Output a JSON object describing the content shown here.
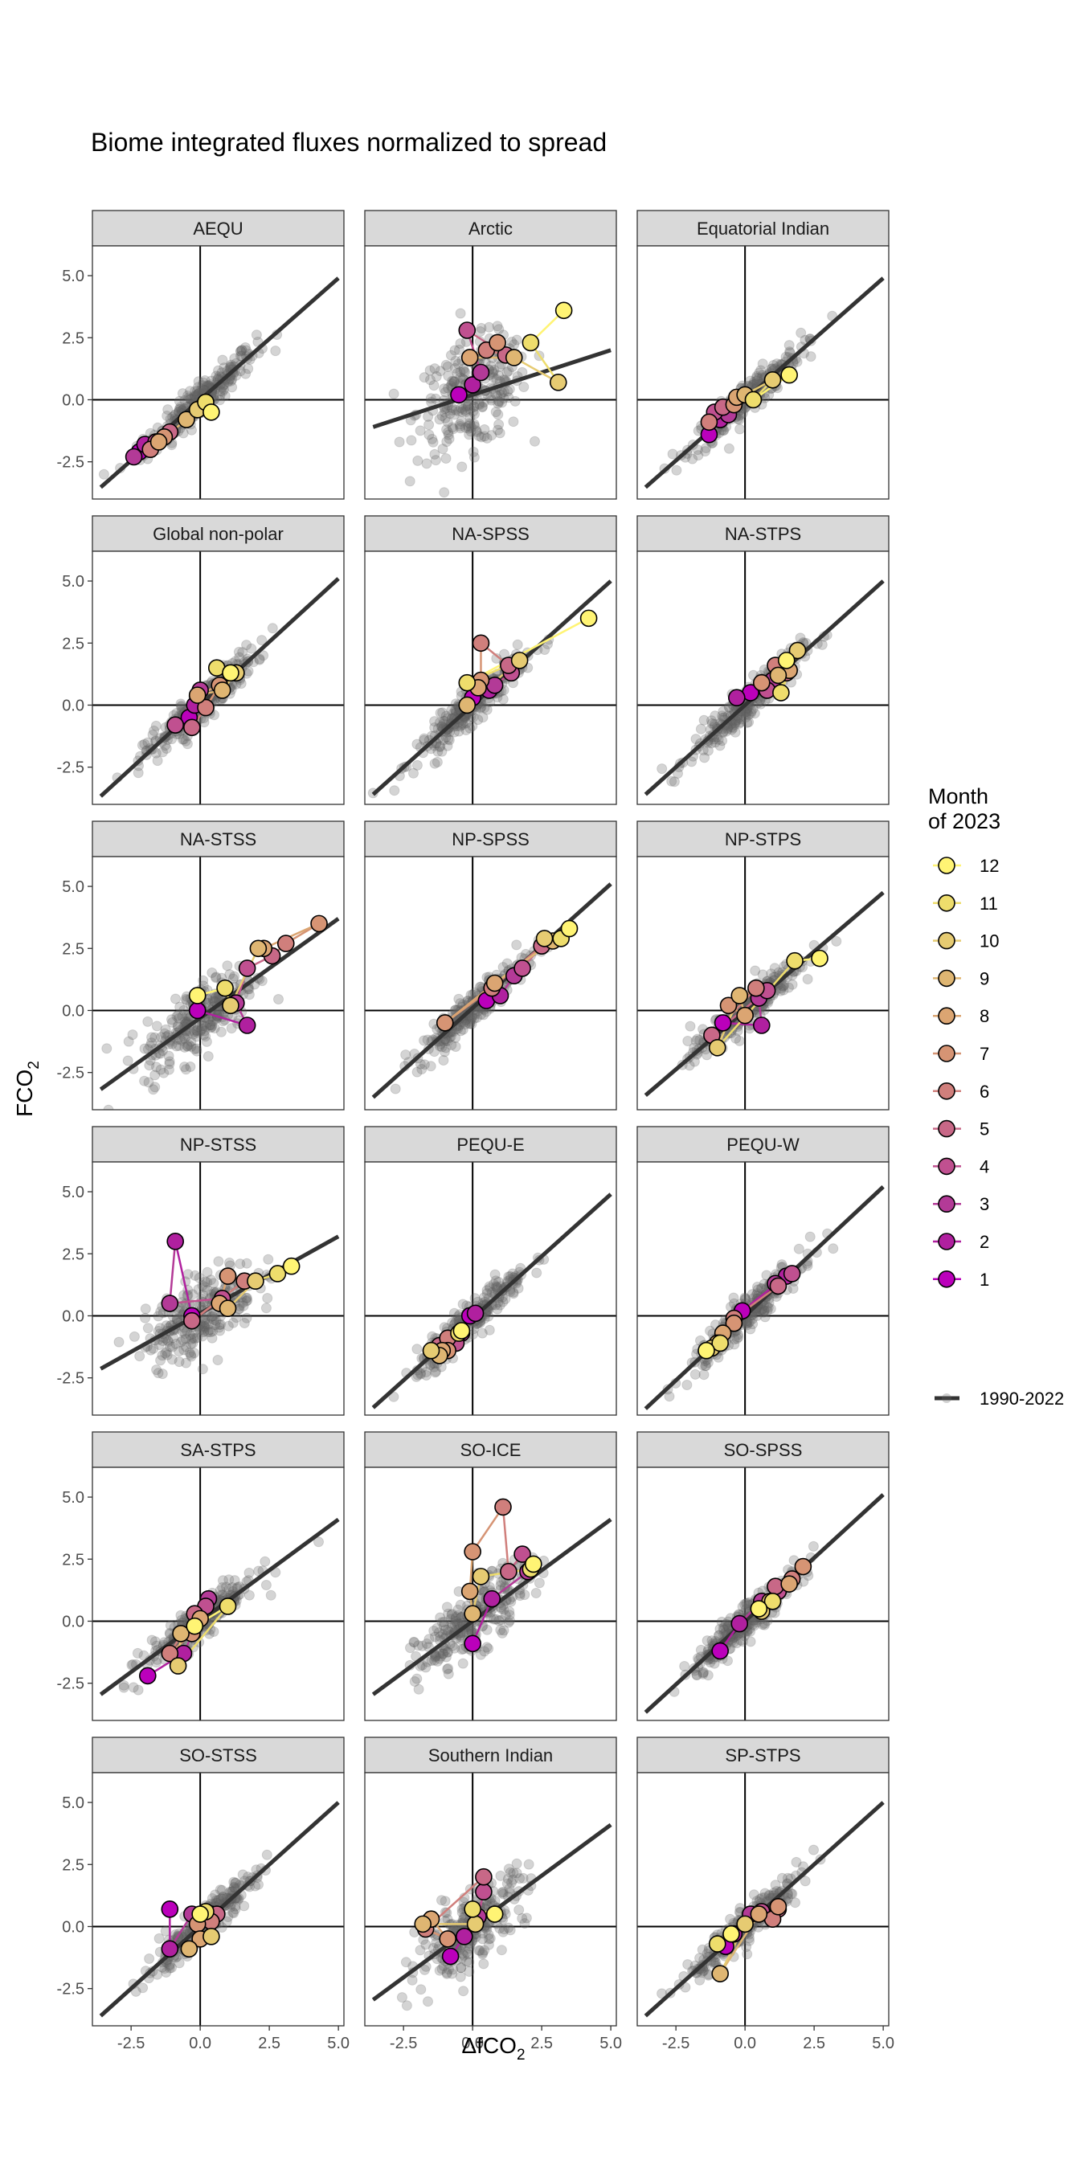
{
  "chart_data": {
    "type": "scatter",
    "title": "Biome integrated fluxes normalized to spread",
    "xlabel": "ΔfCO",
    "xlabel_sub": "2",
    "ylabel": "FCO",
    "ylabel_sub": "2",
    "xlim": [
      -3.9,
      5.2
    ],
    "ylim": [
      -4.0,
      6.2
    ],
    "x_ticks": [
      -2.5,
      0.0,
      2.5,
      5.0
    ],
    "y_ticks": [
      -2.5,
      0.0,
      2.5,
      5.0
    ],
    "x_tick_labels": [
      "-2.5",
      "0.0",
      "2.5",
      "5.0"
    ],
    "y_tick_labels": [
      "-2.5",
      "0.0",
      "2.5",
      "5.0"
    ],
    "grid": false,
    "legend": {
      "placement": "right",
      "title_line1": "Month",
      "title_line2": "of 2023",
      "months": [
        "12",
        "11",
        "10",
        "9",
        "8",
        "7",
        "6",
        "5",
        "4",
        "3",
        "2",
        "1"
      ],
      "line_label": "1990-2022"
    },
    "month_colors": [
      "#bb00bb",
      "#b0209f",
      "#b33a97",
      "#c05090",
      "#c86887",
      "#d07f7c",
      "#d69474",
      "#dba572",
      "#dfb672",
      "#e6cb72",
      "#eedd6c",
      "#fff474"
    ],
    "panels": [
      {
        "name": "AEQU",
        "fit": [
          0.0,
          0.98
        ],
        "months": [
          [
            -2.2,
            -2.1
          ],
          [
            -2.0,
            -1.8
          ],
          [
            -2.4,
            -2.3
          ],
          [
            -1.6,
            -1.7
          ],
          [
            -1.1,
            -1.3
          ],
          [
            -1.8,
            -2.0
          ],
          [
            -1.3,
            -1.5
          ],
          [
            -1.5,
            -1.7
          ],
          [
            -0.5,
            -0.8
          ],
          [
            -0.1,
            -0.4
          ],
          [
            0.2,
            -0.1
          ],
          [
            0.4,
            -0.5
          ]
        ]
      },
      {
        "name": "Arctic",
        "fit": [
          0.2,
          0.36
        ],
        "months": [
          [
            -0.5,
            0.2
          ],
          [
            0.0,
            0.6
          ],
          [
            0.3,
            1.1
          ],
          [
            -0.2,
            2.8
          ],
          [
            1.2,
            1.8
          ],
          [
            0.5,
            2.0
          ],
          [
            0.9,
            2.3
          ],
          [
            -0.1,
            1.7
          ],
          [
            1.5,
            1.7
          ],
          [
            3.1,
            0.7
          ],
          [
            2.1,
            2.3
          ],
          [
            3.3,
            3.6
          ]
        ]
      },
      {
        "name": "Equatorial Indian",
        "fit": [
          0.0,
          0.98
        ],
        "months": [
          [
            -1.3,
            -1.4
          ],
          [
            -0.9,
            -0.8
          ],
          [
            -0.6,
            -0.6
          ],
          [
            -1.1,
            -0.5
          ],
          [
            -0.8,
            -0.3
          ],
          [
            -1.3,
            -0.9
          ],
          [
            -0.4,
            -0.2
          ],
          [
            -0.3,
            0.1
          ],
          [
            0.0,
            0.2
          ],
          [
            1.0,
            0.8
          ],
          [
            0.3,
            0.0
          ],
          [
            1.6,
            1.0
          ]
        ]
      },
      {
        "name": "Global non-polar",
        "fit": [
          0.0,
          1.02
        ],
        "months": [
          [
            -0.4,
            -0.5
          ],
          [
            -0.2,
            0.0
          ],
          [
            0.0,
            0.6
          ],
          [
            -0.9,
            -0.8
          ],
          [
            -0.3,
            -0.9
          ],
          [
            0.2,
            -0.1
          ],
          [
            0.7,
            0.8
          ],
          [
            -0.1,
            0.4
          ],
          [
            0.8,
            0.6
          ],
          [
            1.3,
            1.3
          ],
          [
            0.6,
            1.5
          ],
          [
            1.1,
            1.3
          ]
        ]
      },
      {
        "name": "NA-SPSS",
        "fit": [
          0.0,
          1.0
        ],
        "months": [
          [
            0.0,
            0.3
          ],
          [
            0.6,
            0.6
          ],
          [
            0.8,
            0.8
          ],
          [
            1.4,
            1.3
          ],
          [
            1.3,
            1.6
          ],
          [
            0.3,
            2.5
          ],
          [
            0.3,
            1.0
          ],
          [
            0.2,
            0.7
          ],
          [
            -0.2,
            0.0
          ],
          [
            1.7,
            1.8
          ],
          [
            -0.2,
            0.9
          ],
          [
            4.2,
            3.5
          ]
        ]
      },
      {
        "name": "NA-STPS",
        "fit": [
          0.0,
          1.0
        ],
        "months": [
          [
            0.2,
            0.5
          ],
          [
            -0.3,
            0.3
          ],
          [
            1.0,
            1.0
          ],
          [
            0.8,
            0.6
          ],
          [
            1.5,
            1.3
          ],
          [
            1.1,
            1.6
          ],
          [
            0.6,
            0.9
          ],
          [
            1.6,
            1.4
          ],
          [
            1.2,
            1.2
          ],
          [
            1.9,
            2.2
          ],
          [
            1.3,
            0.5
          ],
          [
            1.5,
            1.8
          ]
        ]
      },
      {
        "name": "NA-STSS",
        "fit": [
          -0.3,
          0.8
        ],
        "months": [
          [
            -0.1,
            0.0
          ],
          [
            1.7,
            -0.6
          ],
          [
            1.3,
            0.3
          ],
          [
            1.7,
            1.7
          ],
          [
            2.6,
            2.2
          ],
          [
            3.1,
            2.7
          ],
          [
            4.3,
            3.5
          ],
          [
            2.3,
            2.5
          ],
          [
            2.1,
            2.5
          ],
          [
            1.1,
            0.2
          ],
          [
            0.9,
            0.9
          ],
          [
            -0.1,
            0.6
          ]
        ]
      },
      {
        "name": "NP-SPSS",
        "fit": [
          0.1,
          1.0
        ],
        "months": [
          [
            0.5,
            0.4
          ],
          [
            1.0,
            0.6
          ],
          [
            1.5,
            1.4
          ],
          [
            1.8,
            1.7
          ],
          [
            2.5,
            2.6
          ],
          [
            0.7,
            0.9
          ],
          [
            -1.0,
            -0.5
          ],
          [
            0.8,
            1.1
          ],
          [
            2.9,
            2.8
          ],
          [
            2.6,
            2.9
          ],
          [
            3.2,
            2.9
          ],
          [
            3.5,
            3.3
          ]
        ]
      },
      {
        "name": "NP-STPS",
        "fit": [
          0.0,
          0.95
        ],
        "months": [
          [
            -0.8,
            -0.5
          ],
          [
            0.6,
            -0.6
          ],
          [
            0.5,
            0.5
          ],
          [
            0.8,
            0.8
          ],
          [
            -1.2,
            -1.0
          ],
          [
            0.4,
            0.9
          ],
          [
            -0.6,
            0.2
          ],
          [
            0.0,
            -0.2
          ],
          [
            -0.2,
            0.6
          ],
          [
            -1.0,
            -1.5
          ],
          [
            1.8,
            2.0
          ],
          [
            2.7,
            2.1
          ]
        ]
      },
      {
        "name": "NP-STSS",
        "fit": [
          0.1,
          0.62
        ],
        "months": [
          [
            -0.3,
            0.0
          ],
          [
            -0.9,
            3.0
          ],
          [
            -1.1,
            0.5
          ],
          [
            0.8,
            0.7
          ],
          [
            -0.3,
            -0.2
          ],
          [
            1.6,
            1.4
          ],
          [
            1.0,
            1.6
          ],
          [
            0.7,
            0.5
          ],
          [
            1.0,
            0.3
          ],
          [
            2.0,
            1.4
          ],
          [
            2.8,
            1.7
          ],
          [
            3.3,
            2.0
          ]
        ]
      },
      {
        "name": "PEQU-E",
        "fit": [
          -0.1,
          1.0
        ],
        "months": [
          [
            -0.1,
            0.0
          ],
          [
            0.1,
            0.1
          ],
          [
            -0.4,
            -0.7
          ],
          [
            -0.6,
            -1.1
          ],
          [
            -1.2,
            -1.2
          ],
          [
            -0.9,
            -0.9
          ],
          [
            -0.9,
            -1.4
          ],
          [
            -1.1,
            -1.4
          ],
          [
            -1.2,
            -1.6
          ],
          [
            -1.5,
            -1.4
          ],
          [
            -0.5,
            -0.7
          ],
          [
            -0.4,
            -0.6
          ]
        ]
      },
      {
        "name": "PEQU-W",
        "fit": [
          0.0,
          1.04
        ],
        "months": [
          [
            -0.1,
            0.2
          ],
          [
            1.5,
            1.6
          ],
          [
            1.1,
            1.3
          ],
          [
            1.7,
            1.7
          ],
          [
            1.2,
            1.2
          ],
          [
            -0.4,
            -0.1
          ],
          [
            -0.4,
            -0.3
          ],
          [
            -0.8,
            -0.7
          ],
          [
            -1.0,
            -1.1
          ],
          [
            -1.2,
            -1.3
          ],
          [
            -0.9,
            -1.1
          ],
          [
            -1.4,
            -1.4
          ]
        ]
      },
      {
        "name": "SA-STPS",
        "fit": [
          0.0,
          0.82
        ],
        "months": [
          [
            -1.9,
            -2.2
          ],
          [
            -0.6,
            -1.3
          ],
          [
            0.3,
            0.9
          ],
          [
            0.2,
            0.6
          ],
          [
            -0.2,
            0.3
          ],
          [
            -1.1,
            -1.3
          ],
          [
            -0.3,
            -0.5
          ],
          [
            0.0,
            0.1
          ],
          [
            -0.7,
            -0.5
          ],
          [
            -0.8,
            -1.8
          ],
          [
            1.0,
            0.6
          ],
          [
            -0.2,
            -0.2
          ]
        ]
      },
      {
        "name": "SO-ICE",
        "fit": [
          0.0,
          0.82
        ],
        "months": [
          [
            0.0,
            -0.9
          ],
          [
            0.7,
            0.9
          ],
          [
            2.0,
            2.0
          ],
          [
            1.8,
            2.7
          ],
          [
            1.3,
            2.0
          ],
          [
            1.1,
            4.6
          ],
          [
            0.0,
            2.8
          ],
          [
            -0.1,
            1.2
          ],
          [
            0.0,
            0.3
          ],
          [
            0.3,
            1.8
          ],
          [
            2.1,
            2.1
          ],
          [
            2.2,
            2.3
          ]
        ]
      },
      {
        "name": "SO-SPSS",
        "fit": [
          0.0,
          1.02
        ],
        "months": [
          [
            -0.9,
            -1.2
          ],
          [
            -0.2,
            -0.1
          ],
          [
            0.6,
            0.8
          ],
          [
            1.2,
            1.2
          ],
          [
            1.1,
            1.4
          ],
          [
            1.7,
            1.7
          ],
          [
            2.1,
            2.2
          ],
          [
            1.6,
            1.5
          ],
          [
            0.9,
            0.8
          ],
          [
            0.6,
            0.4
          ],
          [
            1.0,
            0.8
          ],
          [
            0.5,
            0.5
          ]
        ]
      },
      {
        "name": "SO-STSS",
        "fit": [
          0.0,
          1.0
        ],
        "months": [
          [
            -1.1,
            0.7
          ],
          [
            -1.1,
            -0.9
          ],
          [
            -0.3,
            0.5
          ],
          [
            0.4,
            0.5
          ],
          [
            0.6,
            0.5
          ],
          [
            0.4,
            0.2
          ],
          [
            -0.1,
            0.1
          ],
          [
            0.0,
            -0.5
          ],
          [
            -0.4,
            -0.9
          ],
          [
            0.4,
            -0.4
          ],
          [
            0.2,
            0.6
          ],
          [
            0.0,
            0.5
          ]
        ]
      },
      {
        "name": "Southern Indian",
        "fit": [
          0.0,
          0.82
        ],
        "months": [
          [
            -0.8,
            -1.2
          ],
          [
            -0.3,
            -0.4
          ],
          [
            0.2,
            0.4
          ],
          [
            0.4,
            1.4
          ],
          [
            0.4,
            2.0
          ],
          [
            -1.7,
            -0.1
          ],
          [
            -0.9,
            -0.5
          ],
          [
            -1.5,
            0.3
          ],
          [
            -1.8,
            0.1
          ],
          [
            0.1,
            0.1
          ],
          [
            0.0,
            0.7
          ],
          [
            0.8,
            0.5
          ]
        ]
      },
      {
        "name": "SP-STPS",
        "fit": [
          0.0,
          1.0
        ],
        "months": [
          [
            -0.7,
            -0.8
          ],
          [
            -0.4,
            -0.3
          ],
          [
            0.2,
            0.5
          ],
          [
            0.6,
            0.6
          ],
          [
            1.2,
            0.7
          ],
          [
            1.0,
            0.3
          ],
          [
            1.2,
            0.8
          ],
          [
            0.5,
            0.5
          ],
          [
            -0.9,
            -1.9
          ],
          [
            0.0,
            0.1
          ],
          [
            -1.0,
            -0.7
          ],
          [
            -0.5,
            -0.3
          ]
        ]
      }
    ]
  }
}
